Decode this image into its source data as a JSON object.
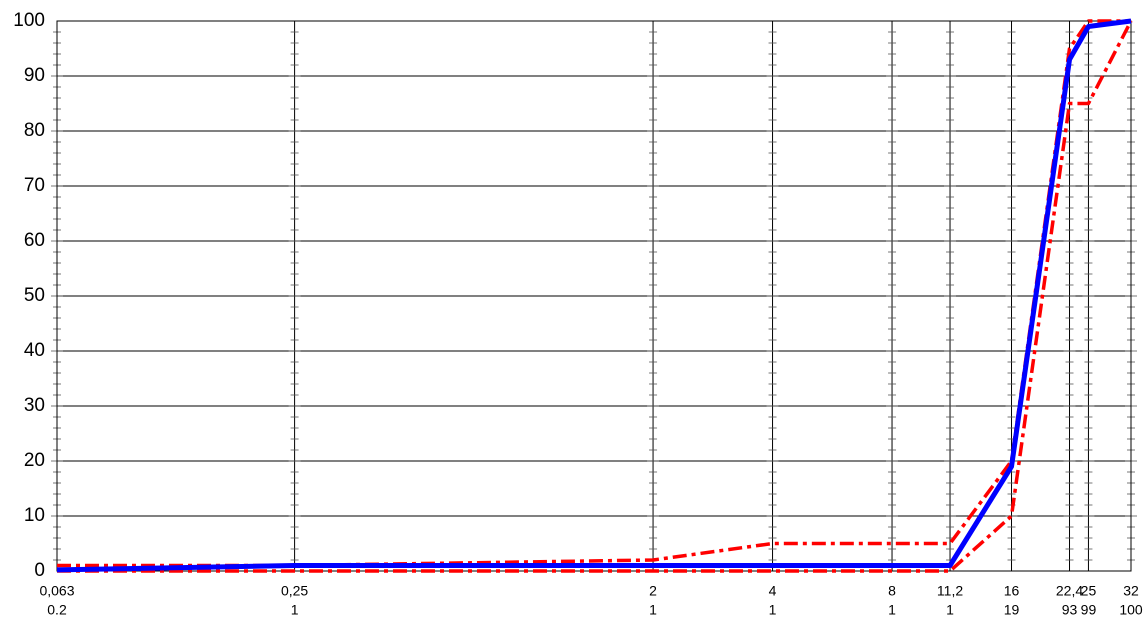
{
  "chart_data": {
    "type": "line",
    "x": [
      0.063,
      0.25,
      2,
      4,
      8,
      11.2,
      16,
      22.4,
      25,
      32
    ],
    "xticks": [
      {
        "value": 0.063,
        "label": "0,063"
      },
      {
        "value": 0.25,
        "label": "0,25"
      },
      2,
      4,
      8,
      {
        "value": 11.2,
        "label": "11,2"
      },
      16,
      {
        "value": 22.4,
        "label": "22,4"
      },
      25,
      32
    ],
    "xlim": [
      0.063,
      32
    ],
    "xscale": "log",
    "ylim": [
      0,
      100
    ],
    "yticks": [
      0,
      10,
      20,
      30,
      40,
      50,
      60,
      70,
      80,
      90,
      100
    ],
    "grid": true,
    "series": [
      {
        "color": "#0000ff",
        "style": "solid",
        "values": [
          0.2,
          1,
          1,
          1,
          1,
          1,
          19,
          93,
          99,
          100
        ]
      },
      {
        "color": "#ff0000",
        "style": "dashdot",
        "values": [
          1,
          1,
          2,
          5,
          5,
          5,
          20,
          95,
          100,
          100
        ]
      },
      {
        "color": "#ff0000",
        "style": "dashdot",
        "values": [
          0,
          0,
          0,
          0,
          0,
          0,
          10,
          85,
          85,
          100
        ]
      }
    ]
  }
}
